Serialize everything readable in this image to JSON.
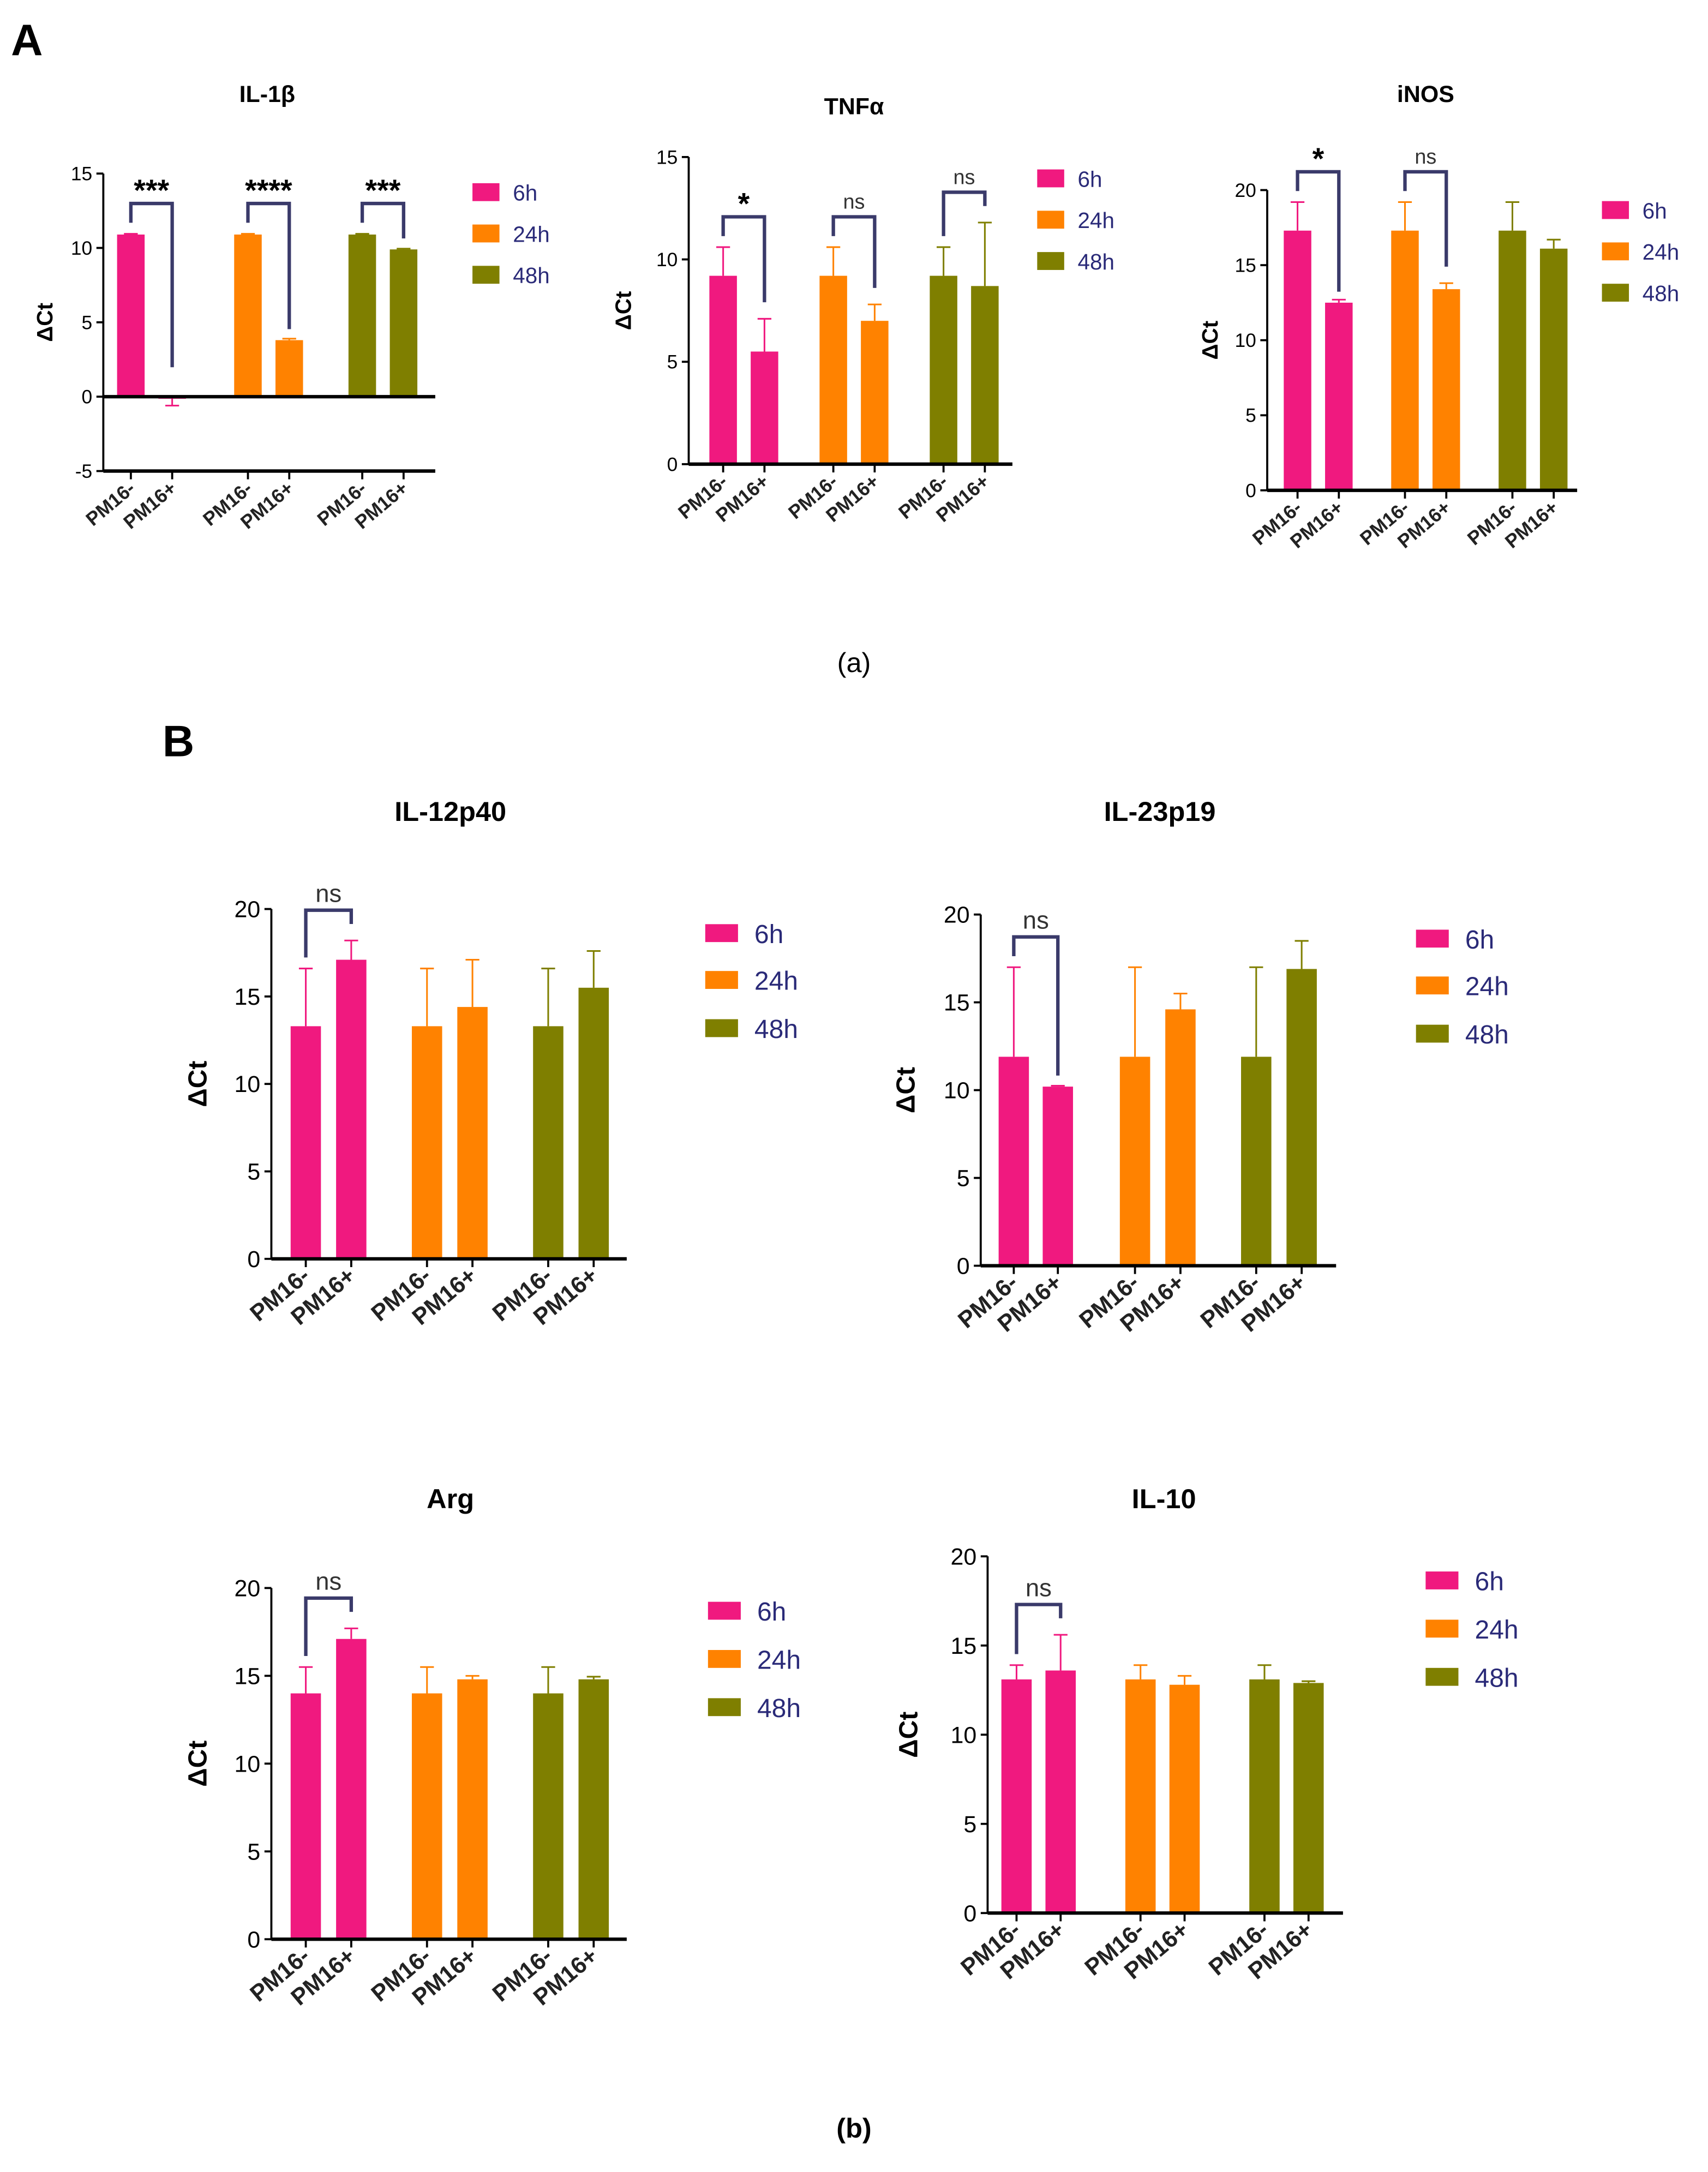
{
  "panel_labels": {
    "A": "A",
    "B": "B",
    "a": "(a)",
    "b": "(b)"
  },
  "colors": {
    "6h": "#f0197f",
    "24h": "#ff8200",
    "48h": "#7f7f00",
    "bracket": "#3a3a6a",
    "legend_text": "#2a2a78"
  },
  "chart_data": [
    {
      "type": "bar",
      "title": "IL-1β",
      "ylabel": "ΔCt",
      "ylim": [
        -5,
        15
      ],
      "yticks": [
        -5,
        0,
        5,
        10,
        15
      ],
      "categories": [
        "PM16-",
        "PM16+"
      ],
      "legend": [
        "6h",
        "24h",
        "48h"
      ],
      "series": [
        {
          "name": "6h",
          "values": [
            10.9,
            -0.1
          ],
          "errors": [
            0.05,
            0.5
          ]
        },
        {
          "name": "24h",
          "values": [
            10.9,
            3.8
          ],
          "errors": [
            0.05,
            0.1
          ]
        },
        {
          "name": "48h",
          "values": [
            10.9,
            9.9
          ],
          "errors": [
            0.05,
            0.05
          ]
        }
      ],
      "significance": [
        "***",
        "****",
        "***"
      ]
    },
    {
      "type": "bar",
      "title": "TNFα",
      "ylabel": "ΔCt",
      "ylim": [
        0,
        15
      ],
      "yticks": [
        0,
        5,
        10,
        15
      ],
      "categories": [
        "PM16-",
        "PM16+"
      ],
      "legend": [
        "6h",
        "24h",
        "48h"
      ],
      "series": [
        {
          "name": "6h",
          "values": [
            9.2,
            5.5
          ],
          "errors": [
            1.4,
            1.6
          ]
        },
        {
          "name": "24h",
          "values": [
            9.2,
            7.0
          ],
          "errors": [
            1.4,
            0.8
          ]
        },
        {
          "name": "48h",
          "values": [
            9.2,
            8.7
          ],
          "errors": [
            1.4,
            3.1
          ]
        }
      ],
      "significance": [
        "*",
        "ns",
        "ns"
      ]
    },
    {
      "type": "bar",
      "title": "iNOS",
      "ylabel": "ΔCt",
      "ylim": [
        0,
        20
      ],
      "yticks": [
        0,
        5,
        10,
        15,
        20
      ],
      "categories": [
        "PM16-",
        "PM16+"
      ],
      "legend": [
        "6h",
        "24h",
        "48h"
      ],
      "series": [
        {
          "name": "6h",
          "values": [
            17.3,
            12.5
          ],
          "errors": [
            1.9,
            0.2
          ]
        },
        {
          "name": "24h",
          "values": [
            17.3,
            13.4
          ],
          "errors": [
            1.9,
            0.4
          ]
        },
        {
          "name": "48h",
          "values": [
            17.3,
            16.1
          ],
          "errors": [
            1.9,
            0.6
          ]
        }
      ],
      "significance": [
        "*",
        "ns"
      ]
    },
    {
      "type": "bar",
      "title": "IL-12p40",
      "ylabel": "ΔCt",
      "ylim": [
        0,
        20
      ],
      "yticks": [
        0,
        5,
        10,
        15,
        20
      ],
      "categories": [
        "PM16-",
        "PM16+"
      ],
      "legend": [
        "6h",
        "24h",
        "48h"
      ],
      "series": [
        {
          "name": "6h",
          "values": [
            13.3,
            17.1
          ],
          "errors": [
            3.3,
            1.1
          ]
        },
        {
          "name": "24h",
          "values": [
            13.3,
            14.4
          ],
          "errors": [
            3.3,
            2.7
          ]
        },
        {
          "name": "48h",
          "values": [
            13.3,
            15.5
          ],
          "errors": [
            3.3,
            2.1
          ]
        }
      ],
      "significance": [
        "ns"
      ]
    },
    {
      "type": "bar",
      "title": "IL-23p19",
      "ylabel": "ΔCt",
      "ylim": [
        0,
        20
      ],
      "yticks": [
        0,
        5,
        10,
        15,
        20
      ],
      "categories": [
        "PM16-",
        "PM16+"
      ],
      "legend": [
        "6h",
        "24h",
        "48h"
      ],
      "series": [
        {
          "name": "6h",
          "values": [
            11.9,
            10.2
          ],
          "errors": [
            5.1,
            0.05
          ]
        },
        {
          "name": "24h",
          "values": [
            11.9,
            14.6
          ],
          "errors": [
            5.1,
            0.9
          ]
        },
        {
          "name": "48h",
          "values": [
            11.9,
            16.9
          ],
          "errors": [
            5.1,
            1.6
          ]
        }
      ],
      "significance": [
        "ns"
      ]
    },
    {
      "type": "bar",
      "title": "Arg",
      "ylabel": "ΔCt",
      "ylim": [
        0,
        20
      ],
      "yticks": [
        0,
        5,
        10,
        15,
        20
      ],
      "categories": [
        "PM16-",
        "PM16+"
      ],
      "legend": [
        "6h",
        "24h",
        "48h"
      ],
      "series": [
        {
          "name": "6h",
          "values": [
            14.0,
            17.1
          ],
          "errors": [
            1.5,
            0.6
          ]
        },
        {
          "name": "24h",
          "values": [
            14.0,
            14.8
          ],
          "errors": [
            1.5,
            0.2
          ]
        },
        {
          "name": "48h",
          "values": [
            14.0,
            14.8
          ],
          "errors": [
            1.5,
            0.15
          ]
        }
      ],
      "significance": [
        "ns"
      ]
    },
    {
      "type": "bar",
      "title": "IL-10",
      "ylabel": "ΔCt",
      "ylim": [
        0,
        20
      ],
      "yticks": [
        0,
        5,
        10,
        15,
        20
      ],
      "categories": [
        "PM16-",
        "PM16+"
      ],
      "legend": [
        "6h",
        "24h",
        "48h"
      ],
      "series": [
        {
          "name": "6h",
          "values": [
            13.1,
            13.6
          ],
          "errors": [
            0.8,
            2.0
          ]
        },
        {
          "name": "24h",
          "values": [
            13.1,
            12.8
          ],
          "errors": [
            0.8,
            0.5
          ]
        },
        {
          "name": "48h",
          "values": [
            13.1,
            12.9
          ],
          "errors": [
            0.8,
            0.1
          ]
        }
      ],
      "significance": [
        "ns"
      ]
    }
  ]
}
